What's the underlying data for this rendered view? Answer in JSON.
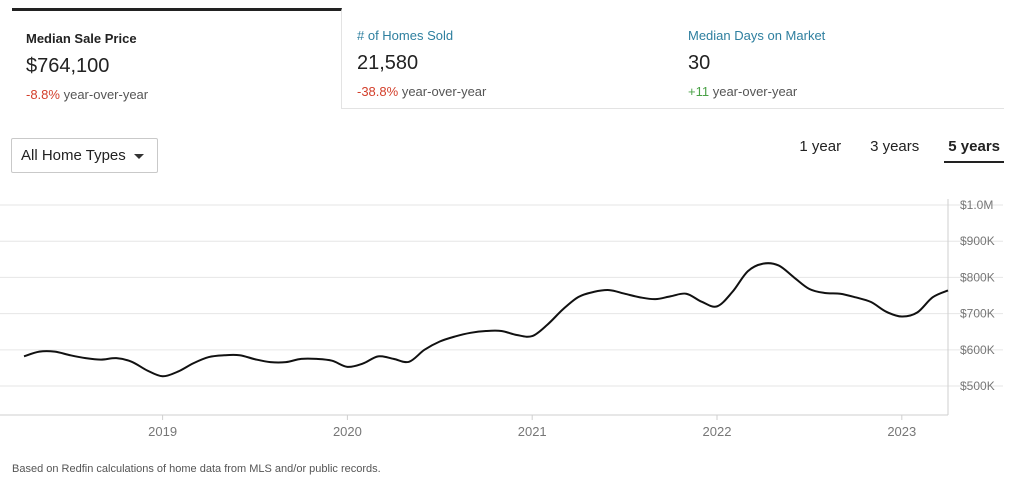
{
  "tabs": [
    {
      "label": "Median Sale Price",
      "value": "$764,100",
      "change": "-8.8%",
      "change_suffix": "year-over-year",
      "change_color": "#d33f2b",
      "active": true
    },
    {
      "label": "# of Homes Sold",
      "value": "21,580",
      "change": "-38.8%",
      "change_suffix": "year-over-year",
      "change_color": "#d33f2b",
      "active": false
    },
    {
      "label": "Median Days on Market",
      "value": "30",
      "change": "+11",
      "change_suffix": "year-over-year",
      "change_color": "#4aa147",
      "active": false
    }
  ],
  "filter": {
    "label": "All Home Types",
    "icon": "caret-down-icon"
  },
  "ranges": {
    "options": [
      "1 year",
      "3 years",
      "5 years"
    ],
    "selected": "5 years"
  },
  "colors": {
    "link": "#2e7f9f",
    "negative": "#d33f2b",
    "positive": "#4aa147",
    "line": "#111111",
    "grid": "#e6e6e6"
  },
  "chart_data": {
    "type": "line",
    "title": "",
    "xlabel": "",
    "ylabel": "",
    "grid": true,
    "y_axis_position": "right",
    "ylim": [
      420000,
      1000000
    ],
    "y_ticks": [
      {
        "value": 500000,
        "label": "$500K"
      },
      {
        "value": 600000,
        "label": "$600K"
      },
      {
        "value": 700000,
        "label": "$700K"
      },
      {
        "value": 800000,
        "label": "$800K"
      },
      {
        "value": 900000,
        "label": "$900K"
      },
      {
        "value": 1000000,
        "label": "$1.0M"
      }
    ],
    "x_range": [
      "2018-04",
      "2023-04"
    ],
    "x_ticks": [
      {
        "value": "2019-01",
        "label": "2019"
      },
      {
        "value": "2020-01",
        "label": "2020"
      },
      {
        "value": "2021-01",
        "label": "2021"
      },
      {
        "value": "2022-01",
        "label": "2022"
      },
      {
        "value": "2023-01",
        "label": "2023"
      }
    ],
    "series": [
      {
        "name": "Median Sale Price",
        "x": [
          "2018-04",
          "2018-05",
          "2018-06",
          "2018-07",
          "2018-08",
          "2018-09",
          "2018-10",
          "2018-11",
          "2018-12",
          "2019-01",
          "2019-02",
          "2019-03",
          "2019-04",
          "2019-05",
          "2019-06",
          "2019-07",
          "2019-08",
          "2019-09",
          "2019-10",
          "2019-11",
          "2019-12",
          "2020-01",
          "2020-02",
          "2020-03",
          "2020-04",
          "2020-05",
          "2020-06",
          "2020-07",
          "2020-08",
          "2020-09",
          "2020-10",
          "2020-11",
          "2020-12",
          "2021-01",
          "2021-02",
          "2021-03",
          "2021-04",
          "2021-05",
          "2021-06",
          "2021-07",
          "2021-08",
          "2021-09",
          "2021-10",
          "2021-11",
          "2021-12",
          "2022-01",
          "2022-02",
          "2022-03",
          "2022-04",
          "2022-05",
          "2022-06",
          "2022-07",
          "2022-08",
          "2022-09",
          "2022-10",
          "2022-11",
          "2022-12",
          "2023-01",
          "2023-02",
          "2023-03",
          "2023-04"
        ],
        "values": [
          582000,
          595000,
          595000,
          585000,
          577000,
          573000,
          577000,
          567000,
          543000,
          527000,
          540000,
          563000,
          580000,
          585000,
          585000,
          574000,
          566000,
          566000,
          575000,
          575000,
          570000,
          553000,
          562000,
          582000,
          575000,
          567000,
          600000,
          623000,
          637000,
          647000,
          652000,
          652000,
          641000,
          638000,
          670000,
          712000,
          746000,
          760000,
          765000,
          755000,
          745000,
          740000,
          748000,
          755000,
          733000,
          720000,
          760000,
          817000,
          838000,
          833000,
          800000,
          768000,
          757000,
          755000,
          745000,
          732000,
          705000,
          692000,
          703000,
          745000,
          764000
        ]
      }
    ]
  },
  "footnote": "Based on Redfin calculations of home data from MLS and/or public records."
}
